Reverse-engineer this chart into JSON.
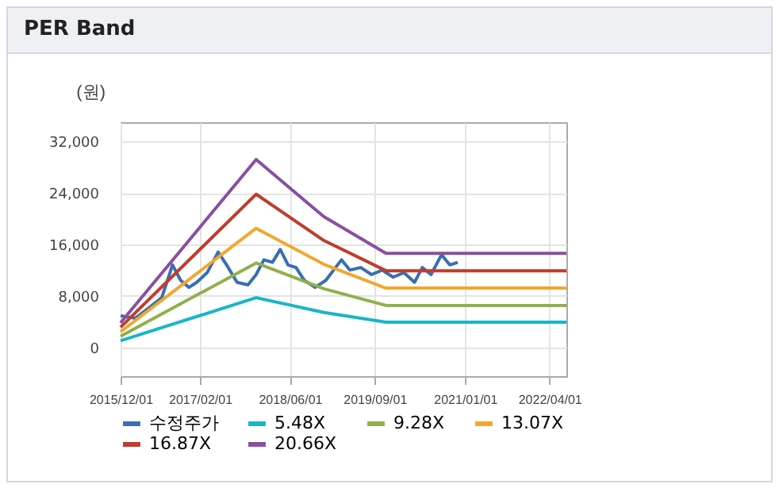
{
  "chart_data": {
    "type": "line",
    "title": "PER Band",
    "ylabel": "(원)",
    "xlim": [
      "2015-12-01",
      "2022-07-01"
    ],
    "ylim": [
      -4500,
      35000
    ],
    "xticks": [
      {
        "value": "2015-12-01",
        "label": "2015/12/01"
      },
      {
        "value": "2017-02-01",
        "label": "2017/02/01"
      },
      {
        "value": "2018-06-01",
        "label": "2018/06/01"
      },
      {
        "value": "2019-09-01",
        "label": "2019/09/01"
      },
      {
        "value": "2021-01-01",
        "label": "2021/01/01"
      },
      {
        "value": "2022-04-01",
        "label": "2022/04/01"
      }
    ],
    "yticks": [
      {
        "value": 0,
        "label": "0"
      },
      {
        "value": 8000,
        "label": "8,000"
      },
      {
        "value": 16000,
        "label": "16,000"
      },
      {
        "value": 24000,
        "label": "24,000"
      },
      {
        "value": 32000,
        "label": "32,000"
      }
    ],
    "grid": true,
    "legend": "bottom",
    "series": [
      {
        "name": "수정주가",
        "color": "#3a6fb0",
        "x": [
          "2015-12-01",
          "2016-02-18",
          "2016-05-01",
          "2016-07-10",
          "2016-09-06",
          "2016-10-20",
          "2016-12-04",
          "2017-01-15",
          "2017-03-12",
          "2017-05-10",
          "2017-06-25",
          "2017-08-20",
          "2017-10-18",
          "2017-12-01",
          "2018-01-12",
          "2018-02-27",
          "2018-04-10",
          "2018-05-22",
          "2018-07-04",
          "2018-08-18",
          "2018-10-15",
          "2018-12-12",
          "2019-03-06",
          "2019-04-20",
          "2019-06-18",
          "2019-08-15",
          "2019-10-12",
          "2019-12-10",
          "2020-02-06",
          "2020-04-03",
          "2020-05-15",
          "2020-07-01",
          "2020-08-27",
          "2020-10-10",
          "2020-11-22"
        ],
        "values": [
          4900,
          4500,
          6100,
          7700,
          12800,
          10400,
          9300,
          10100,
          11600,
          14800,
          12800,
          10100,
          9700,
          11300,
          13600,
          13200,
          15200,
          12800,
          12400,
          10400,
          9300,
          10400,
          13600,
          12000,
          12400,
          11300,
          12000,
          10900,
          11600,
          10100,
          12400,
          11300,
          14400,
          12800,
          13200
        ]
      },
      {
        "name": "5.48X",
        "color": "#1ab5c5",
        "x": [
          "2015-12-01",
          "2017-12-01",
          "2018-12-01",
          "2019-11-01",
          "2022-07-01"
        ],
        "values": [
          1000,
          7700,
          5400,
          3900,
          3900
        ]
      },
      {
        "name": "9.28X",
        "color": "#8fb04a",
        "x": [
          "2015-12-01",
          "2017-12-01",
          "2018-12-01",
          "2019-11-01",
          "2022-07-01"
        ],
        "values": [
          1700,
          13100,
          9100,
          6500,
          6500
        ]
      },
      {
        "name": "13.07X",
        "color": "#f0a830",
        "x": [
          "2015-12-01",
          "2017-12-01",
          "2018-12-01",
          "2019-11-01",
          "2022-07-01"
        ],
        "values": [
          2400,
          18500,
          12900,
          9200,
          9200
        ]
      },
      {
        "name": "16.87X",
        "color": "#c03c2c",
        "x": [
          "2015-12-01",
          "2017-12-01",
          "2018-12-01",
          "2019-11-01",
          "2022-07-01"
        ],
        "values": [
          3100,
          23800,
          16600,
          11900,
          11900
        ]
      },
      {
        "name": "20.66X",
        "color": "#8a4fa0",
        "x": [
          "2015-12-01",
          "2017-12-01",
          "2018-12-01",
          "2019-11-01",
          "2022-07-01"
        ],
        "values": [
          3800,
          29200,
          20300,
          14600,
          14600
        ]
      }
    ]
  }
}
